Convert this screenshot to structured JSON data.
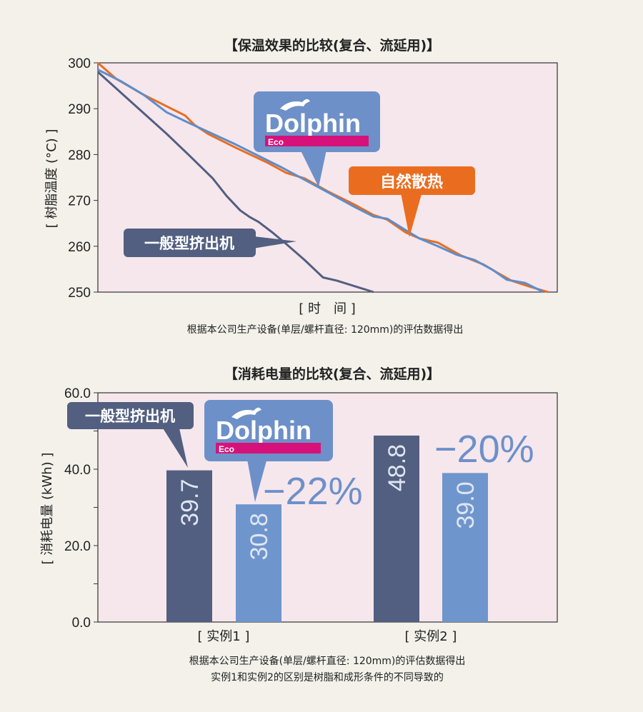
{
  "chart_data": [
    {
      "type": "line",
      "title": "【保温效果的比较(复合、流延用)】",
      "ylabel": "[ 树脂温度 (°C) ]",
      "xlabel": "[ 时　间 ]",
      "ylim": [
        250,
        300
      ],
      "yticks": [
        "300",
        "290",
        "280",
        "270",
        "260",
        "250"
      ],
      "grid": false,
      "note": "根据本公司生产设备(单层/螺杆直径: 120mm)的评估数据得出",
      "series": [
        {
          "name": "自然散热",
          "color": "#ea6d1f",
          "points": [
            [
              0,
              300
            ],
            [
              0.04,
              296.5
            ],
            [
              0.1,
              293
            ],
            [
              0.16,
              290
            ],
            [
              0.19,
              288.5
            ],
            [
              0.21,
              286.5
            ],
            [
              0.24,
              284.5
            ],
            [
              0.3,
              281.5
            ],
            [
              0.37,
              278.2
            ],
            [
              0.41,
              276
            ],
            [
              0.45,
              274.8
            ],
            [
              0.5,
              272
            ],
            [
              0.56,
              269
            ],
            [
              0.6,
              266.8
            ],
            [
              0.63,
              265.8
            ],
            [
              0.67,
              263
            ],
            [
              0.7,
              261.7
            ],
            [
              0.74,
              260.8
            ],
            [
              0.79,
              258
            ],
            [
              0.84,
              256
            ],
            [
              0.87,
              254.2
            ],
            [
              0.9,
              252.5
            ],
            [
              0.94,
              251.2
            ],
            [
              0.98,
              250
            ]
          ]
        },
        {
          "name": "Dolphin Eco",
          "color": "#5b8ecb",
          "points": [
            [
              0,
              298.5
            ],
            [
              0.05,
              296
            ],
            [
              0.1,
              293
            ],
            [
              0.15,
              289.2
            ],
            [
              0.2,
              286.8
            ],
            [
              0.3,
              282.2
            ],
            [
              0.4,
              277.2
            ],
            [
              0.5,
              271.8
            ],
            [
              0.56,
              268.5
            ],
            [
              0.6,
              266.5
            ],
            [
              0.63,
              266
            ],
            [
              0.67,
              263.5
            ],
            [
              0.7,
              261.7
            ],
            [
              0.74,
              260
            ],
            [
              0.78,
              258.2
            ],
            [
              0.82,
              257
            ],
            [
              0.86,
              254.8
            ],
            [
              0.89,
              252.7
            ],
            [
              0.93,
              252
            ],
            [
              0.97,
              250
            ]
          ]
        },
        {
          "name": "一般型挤出机",
          "color": "#525f80",
          "points": [
            [
              0,
              298
            ],
            [
              0.05,
              293.5
            ],
            [
              0.1,
              289
            ],
            [
              0.15,
              284.5
            ],
            [
              0.2,
              279.7
            ],
            [
              0.25,
              274.8
            ],
            [
              0.28,
              271
            ],
            [
              0.31,
              267.8
            ],
            [
              0.33,
              266.4
            ],
            [
              0.35,
              265.3
            ],
            [
              0.38,
              263
            ],
            [
              0.41,
              260.5
            ],
            [
              0.45,
              257
            ],
            [
              0.49,
              253.2
            ],
            [
              0.52,
              252.5
            ],
            [
              0.6,
              250
            ]
          ]
        }
      ]
    },
    {
      "type": "bar",
      "title": "【消耗电量的比较(复合、流延用)】",
      "ylabel": "[ 消耗电量 (kWh) ]",
      "ylim": [
        0,
        60
      ],
      "yticks": [
        "60.0",
        "40.0",
        "20.0",
        "0.0"
      ],
      "grid": false,
      "categories": [
        "[ 实例1 ]",
        "[ 实例2 ]"
      ],
      "series": [
        {
          "name": "一般型挤出机",
          "color": "#525f80",
          "values": [
            39.7,
            48.8
          ],
          "labels": [
            "39.7",
            "48.8"
          ]
        },
        {
          "name": "Dolphin Eco",
          "color": "#6f95cd",
          "values": [
            30.8,
            39.0
          ],
          "labels": [
            "30.8",
            "39.0"
          ]
        }
      ],
      "reductions": [
        "−22%",
        "−20%"
      ],
      "notes": [
        "根据本公司生产设备(单层/螺杆直径: 120mm)的评估数据得出",
        "实例1和实例2的区别是树脂和成形条件的不同导致的"
      ]
    }
  ],
  "callouts": {
    "natural": "自然散热",
    "general": "一般型挤出机",
    "logo_word": "Dolphin",
    "logo_sub": "Eco"
  },
  "colors": {
    "plot_bg": "#f6e7ed",
    "orange": "#ea6d1f",
    "blue": "#5b8ecb",
    "navy": "#525f80",
    "logo_bg": "#6d90c9",
    "logo_bar": "#d6127a"
  }
}
